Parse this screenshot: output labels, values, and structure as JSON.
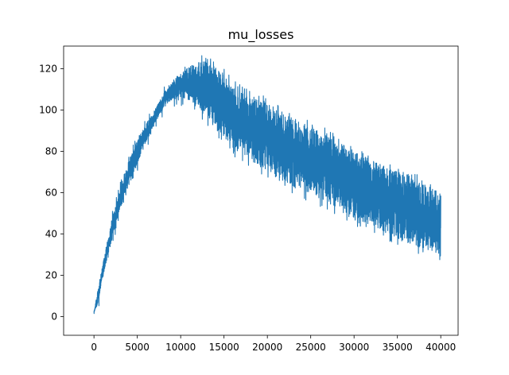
{
  "chart_data": {
    "type": "line",
    "title": "mu_losses",
    "xlabel": "",
    "ylabel": "",
    "xlim": [
      -3500,
      42000
    ],
    "ylim": [
      -9,
      131
    ],
    "x_ticks": [
      0,
      5000,
      10000,
      15000,
      20000,
      25000,
      30000,
      35000,
      40000
    ],
    "y_ticks": [
      0,
      20,
      40,
      60,
      80,
      100,
      120
    ],
    "grid": false,
    "legend": "none",
    "series": [
      {
        "color": "#1f77b4",
        "points": 40000,
        "x": [
          0,
          500,
          1000,
          1500,
          2000,
          3000,
          4000,
          5000,
          6000,
          7000,
          8000,
          9000,
          10000,
          11000,
          12000,
          13000,
          14000,
          15000,
          16000,
          18000,
          20000,
          22000,
          24000,
          26000,
          28000,
          30000,
          32000,
          34000,
          36000,
          38000,
          40000
        ],
        "upper": [
          3,
          14,
          25,
          36,
          46,
          62,
          75,
          86,
          93,
          100,
          108,
          114,
          118,
          121,
          123,
          124,
          121,
          117,
          112,
          107,
          103,
          98,
          94,
          90,
          85,
          80,
          76,
          72,
          69,
          64,
          60
        ],
        "lower": [
          1,
          7,
          18,
          28,
          36,
          52,
          63,
          74,
          84,
          93,
          101,
          105,
          106,
          105,
          102,
          97,
          92,
          87,
          82,
          76,
          70,
          65,
          61,
          57,
          53,
          48,
          44,
          40,
          36,
          33,
          30
        ]
      }
    ]
  }
}
